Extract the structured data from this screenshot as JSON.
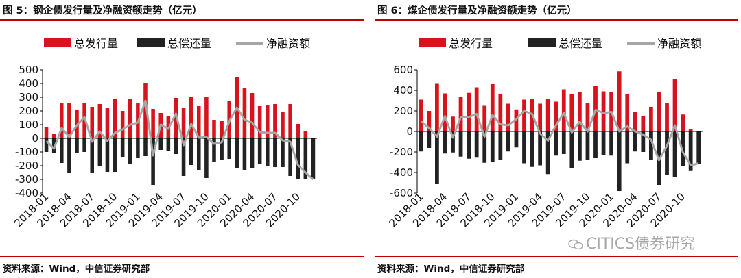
{
  "charts": [
    {
      "title": "图 5：钢企债发行量及净融资额走势（亿元）",
      "source": "资料来源：Wind，中信证券研究部",
      "chart_data": {
        "type": "bar",
        "title": "图 5：钢企债发行量及净融资额走势（亿元）",
        "xlabel": "",
        "ylabel": "",
        "ylim": [
          -400,
          500
        ],
        "yticks": [
          -400,
          -300,
          -200,
          -100,
          0,
          100,
          200,
          300,
          400,
          500
        ],
        "xtick_labels": [
          "2018-01",
          "2018-04",
          "2018-07",
          "2018-10",
          "2019-01",
          "2019-04",
          "2019-07",
          "2019-10",
          "2020-01",
          "2020-04",
          "2020-07",
          "2020-10"
        ],
        "legend_position": "top",
        "grid": false,
        "categories": [
          "2018-01",
          "2018-02",
          "2018-03",
          "2018-04",
          "2018-05",
          "2018-06",
          "2018-07",
          "2018-08",
          "2018-09",
          "2018-10",
          "2018-11",
          "2018-12",
          "2019-01",
          "2019-02",
          "2019-03",
          "2019-04",
          "2019-05",
          "2019-06",
          "2019-07",
          "2019-08",
          "2019-09",
          "2019-10",
          "2019-11",
          "2019-12",
          "2020-01",
          "2020-02",
          "2020-03",
          "2020-04",
          "2020-05",
          "2020-06",
          "2020-07",
          "2020-08",
          "2020-09",
          "2020-10",
          "2020-11",
          "2020-12"
        ],
        "series": [
          {
            "name": "总发行量",
            "kind": "bar",
            "color": "#d7141e",
            "values": [
              80,
              35,
              255,
              260,
              205,
              255,
              230,
              250,
              225,
              285,
              200,
              290,
              260,
              405,
              215,
              185,
              165,
              295,
              225,
              300,
              235,
              300,
              135,
              130,
              275,
              445,
              370,
              330,
              235,
              245,
              250,
              195,
              250,
              105,
              50,
              0
            ]
          },
          {
            "name": "总偿还量",
            "kind": "bar",
            "color": "#222222",
            "values": [
              -100,
              -110,
              -180,
              -250,
              -110,
              -100,
              -255,
              -200,
              -245,
              -245,
              -135,
              -190,
              -145,
              -130,
              -340,
              -85,
              -95,
              -115,
              -275,
              -195,
              -230,
              -290,
              -175,
              -160,
              -150,
              -220,
              -235,
              -215,
              -190,
              -205,
              -210,
              -210,
              -275,
              -300,
              -300,
              -300
            ]
          },
          {
            "name": "净融资额",
            "kind": "line",
            "color": "#a6a6a6",
            "values": [
              -20,
              -75,
              75,
              10,
              95,
              155,
              -25,
              50,
              -20,
              40,
              65,
              100,
              115,
              275,
              -125,
              100,
              70,
              180,
              -50,
              105,
              5,
              10,
              -40,
              -30,
              125,
              225,
              135,
              115,
              45,
              40,
              40,
              -15,
              -25,
              -195,
              -250,
              -300
            ]
          }
        ]
      }
    },
    {
      "title": "图 6：煤企债发行量及净融资额走势（亿元）",
      "source": "资料来源：Wind，中信证券研究部",
      "chart_data": {
        "type": "bar",
        "title": "图 6：煤企债发行量及净融资额走势（亿元）",
        "xlabel": "",
        "ylabel": "",
        "ylim": [
          -600,
          600
        ],
        "yticks": [
          -600,
          -400,
          -200,
          0,
          200,
          400,
          600
        ],
        "xtick_labels": [
          "2018-01",
          "2018-04",
          "2018-07",
          "2018-10",
          "2019-01",
          "2019-04",
          "2019-07",
          "2019-10",
          "2020-01",
          "2020-04",
          "2020-07",
          "2020-10"
        ],
        "legend_position": "top",
        "grid": false,
        "categories": [
          "2018-01",
          "2018-02",
          "2018-03",
          "2018-04",
          "2018-05",
          "2018-06",
          "2018-07",
          "2018-08",
          "2018-09",
          "2018-10",
          "2018-11",
          "2018-12",
          "2019-01",
          "2019-02",
          "2019-03",
          "2019-04",
          "2019-05",
          "2019-06",
          "2019-07",
          "2019-08",
          "2019-09",
          "2019-10",
          "2019-11",
          "2019-12",
          "2020-01",
          "2020-02",
          "2020-03",
          "2020-04",
          "2020-05",
          "2020-06",
          "2020-07",
          "2020-08",
          "2020-09",
          "2020-10",
          "2020-11",
          "2020-12"
        ],
        "series": [
          {
            "name": "总发行量",
            "kind": "bar",
            "color": "#d7141e",
            "values": [
              310,
              200,
              470,
              370,
              145,
              335,
              375,
              430,
              250,
              465,
              360,
              270,
              215,
              310,
              315,
              270,
              320,
              290,
              410,
              365,
              380,
              280,
              445,
              390,
              385,
              585,
              365,
              190,
              150,
              240,
              380,
              280,
              510,
              165,
              25,
              0
            ]
          },
          {
            "name": "总偿还量",
            "kind": "bar",
            "color": "#222222",
            "values": [
              -195,
              -160,
              -510,
              -215,
              -205,
              -245,
              -265,
              -255,
              -305,
              -300,
              -275,
              -195,
              -155,
              -310,
              -345,
              -330,
              -415,
              -235,
              -220,
              -360,
              -285,
              -275,
              -260,
              -230,
              -235,
              -580,
              -310,
              -195,
              -200,
              -280,
              -520,
              -420,
              -445,
              -340,
              -385,
              -320
            ]
          },
          {
            "name": "净融资额",
            "kind": "line",
            "color": "#a6a6a6",
            "values": [
              100,
              35,
              -50,
              150,
              -60,
              140,
              140,
              170,
              -50,
              160,
              70,
              60,
              120,
              200,
              170,
              -20,
              -90,
              60,
              180,
              -10,
              95,
              0,
              210,
              180,
              190,
              0,
              50,
              0,
              -30,
              -80,
              -280,
              -140,
              60,
              -200,
              -330,
              -310
            ]
          }
        ]
      }
    }
  ],
  "watermark": "CITICS债券研究"
}
